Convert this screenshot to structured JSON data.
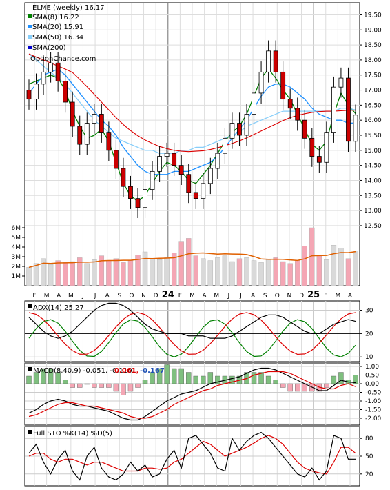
{
  "price_panel": {
    "title": "ELME (weekly) 16.17",
    "legend": [
      {
        "label": "SMA(8) 16.22",
        "color": "#008000"
      },
      {
        "label": "SMA(20) 15.91",
        "color": "#1e90ff"
      },
      {
        "label": "SMA(50) 16.34",
        "color": "#87cefa"
      },
      {
        "label": "SMA(200)",
        "color": "#0000cd"
      }
    ],
    "watermark": "OptionChance.com",
    "y_ticks": [
      "19.50",
      "19.00",
      "18.50",
      "18.00",
      "17.50",
      "17.00",
      "16.50",
      "16.00",
      "15.50",
      "15.00",
      "14.50",
      "14.00",
      "13.50",
      "13.00",
      "12.50"
    ],
    "volume_ticks": [
      "6M",
      "5M",
      "4M",
      "3M",
      "2M",
      "1M"
    ]
  },
  "x_axis": {
    "labels": [
      "F",
      "M",
      "A",
      "M",
      "J",
      "J",
      "A",
      "S",
      "O",
      "N",
      "D",
      "24",
      "F",
      "M",
      "A",
      "M",
      "J",
      "J",
      "A",
      "S",
      "O",
      "N",
      "D",
      "25",
      "F",
      "M",
      "A"
    ]
  },
  "adx_panel": {
    "title": "ADX(14) 25.27",
    "y_ticks": [
      "30",
      "20",
      "10"
    ]
  },
  "macd_panel": {
    "title": "MACD(8,40,9) -0.051, -0.110,",
    "value_red": "0.061,",
    "value_blue": "-0.167",
    "y_ticks": [
      "1.00",
      "0.50",
      "0.00",
      "-0.50",
      "-1.00",
      "-1.50",
      "-2.00"
    ]
  },
  "sto_panel": {
    "title": "Full STO %K(14) %D(5)",
    "y_ticks": [
      "80",
      "50",
      "20"
    ]
  },
  "colors": {
    "up_candle": "#ffffff",
    "down_candle": "#cc0000",
    "sma8": "#008000",
    "sma20": "#1e90ff",
    "sma50": "#87cefa",
    "sma200": "#dd0000",
    "vol_down": "#f4a6b4",
    "vol_up": "#d9d9d9",
    "vol_avg": "#e06000"
  },
  "chart_data": [
    {
      "type": "candlestick",
      "title": "ELME (weekly) 16.17",
      "ylim": [
        12.2,
        19.9
      ],
      "series": [
        {
          "name": "SMA(8) 16.22",
          "values": [
            17.2,
            17.3,
            17.4,
            17.5,
            17.4,
            17.0,
            16.3,
            15.8,
            15.4,
            15.5,
            15.7,
            15.3,
            14.6,
            13.9,
            13.5,
            13.3,
            13.5,
            13.9,
            14.3,
            14.6,
            14.5,
            14.3,
            14.0,
            13.9,
            14.2,
            14.5,
            14.9,
            15.3,
            15.6,
            15.8,
            16.2,
            16.8,
            17.4,
            17.7,
            17.4,
            17.0,
            16.7,
            16.2,
            15.7,
            15.2,
            15.0,
            15.3,
            16.2,
            16.9,
            16.5,
            16.22
          ]
        },
        {
          "name": "SMA(20) 15.91",
          "values": [
            16.9,
            17.2,
            17.5,
            17.6,
            17.7,
            17.5,
            17.2,
            16.9,
            16.6,
            16.3,
            16.0,
            15.8,
            15.5,
            15.1,
            14.8,
            14.5,
            14.3,
            14.2,
            14.2,
            14.2,
            14.3,
            14.3,
            14.3,
            14.4,
            14.5,
            14.6,
            14.8,
            15.1,
            15.4,
            15.7,
            16.0,
            16.4,
            16.8,
            17.1,
            17.2,
            17.2,
            17.1,
            16.9,
            16.7,
            16.4,
            16.2,
            16.1,
            16.0,
            16.0,
            15.9,
            15.91
          ]
        },
        {
          "name": "SMA(50) 16.34",
          "values": [
            18.2,
            18.0,
            17.8,
            17.6,
            17.4,
            17.2,
            16.9,
            16.6,
            16.3,
            16.0,
            15.8,
            15.6,
            15.4,
            15.3,
            15.2,
            15.1,
            15.0,
            15.0,
            14.9,
            14.9,
            14.9,
            15.0,
            15.0,
            15.1,
            15.1,
            15.2,
            15.3,
            15.4,
            15.5,
            15.6,
            15.8,
            15.9,
            16.0,
            16.1,
            16.2,
            16.3,
            16.3,
            16.3,
            16.3,
            16.3,
            16.3,
            16.3,
            16.3,
            16.4,
            16.4,
            16.34
          ]
        }
      ],
      "ohlc_close": [
        16.7,
        17.2,
        17.6,
        17.9,
        17.3,
        16.6,
        15.8,
        15.2,
        15.9,
        16.2,
        15.6,
        15.0,
        14.4,
        13.8,
        13.4,
        13.1,
        13.7,
        14.3,
        14.8,
        14.9,
        14.5,
        14.2,
        13.6,
        13.4,
        13.9,
        14.4,
        14.9,
        15.4,
        15.9,
        15.5,
        16.2,
        16.9,
        17.6,
        18.3,
        17.6,
        16.7,
        16.4,
        16.0,
        15.4,
        14.8,
        14.6,
        15.6,
        17.1,
        17.4,
        15.3,
        16.17
      ],
      "volume_millions": [
        1.9,
        2.3,
        2.8,
        2.2,
        2.6,
        2.4,
        2.5,
        2.9,
        2.3,
        2.7,
        3.1,
        2.6,
        2.8,
        2.4,
        2.6,
        3.2,
        3.5,
        2.8,
        2.7,
        2.9,
        3.4,
        4.6,
        4.9,
        3.1,
        2.8,
        2.6,
        2.9,
        3.1,
        2.5,
        2.8,
        2.9,
        2.6,
        2.4,
        2.7,
        2.9,
        2.5,
        2.3,
        2.6,
        4.1,
        6.0,
        3.1,
        2.7,
        4.2,
        3.9,
        2.8,
        3.6
      ]
    },
    {
      "type": "line",
      "title": "ADX(14) 25.27",
      "ylim": [
        8,
        34
      ],
      "series": [
        {
          "name": "ADX(14) 25.27",
          "values": [
            27,
            24,
            21,
            19,
            18,
            19,
            21,
            24,
            27,
            30,
            32,
            33,
            33,
            32,
            30,
            27,
            24,
            22,
            21,
            20,
            20,
            20,
            19,
            19,
            19,
            18,
            18,
            18,
            19,
            21,
            23,
            25,
            27,
            28,
            28,
            27,
            25,
            23,
            21,
            20,
            20,
            22,
            24,
            25,
            26,
            25.27
          ]
        }
      ]
    },
    {
      "type": "line",
      "title": "MACD(8,40,9) -0.051, -0.110,",
      "ylim": [
        -2.4,
        1.2
      ],
      "series": [
        {
          "name": "0.061,",
          "values": [
            -1.7,
            -1.5,
            -1.2,
            -1.0,
            -0.9,
            -1.0,
            -1.2,
            -1.3,
            -1.3,
            -1.4,
            -1.5,
            -1.6,
            -1.8,
            -2.0,
            -2.1,
            -2.1,
            -1.9,
            -1.6,
            -1.3,
            -1.0,
            -0.8,
            -0.6,
            -0.5,
            -0.4,
            -0.2,
            0.0,
            0.1,
            0.2,
            0.3,
            0.4,
            0.6,
            0.8,
            0.9,
            0.9,
            0.8,
            0.6,
            0.4,
            0.2,
            0.0,
            -0.2,
            -0.4,
            -0.4,
            -0.1,
            0.2,
            0.1,
            0.061
          ]
        },
        {
          "name": "-0.167",
          "values": [
            -1.9,
            -1.8,
            -1.6,
            -1.4,
            -1.2,
            -1.1,
            -1.1,
            -1.2,
            -1.3,
            -1.3,
            -1.4,
            -1.5,
            -1.6,
            -1.7,
            -1.9,
            -2.0,
            -2.0,
            -1.9,
            -1.7,
            -1.5,
            -1.2,
            -1.0,
            -0.8,
            -0.6,
            -0.4,
            -0.3,
            -0.1,
            0.0,
            0.1,
            0.2,
            0.3,
            0.5,
            0.6,
            0.7,
            0.7,
            0.7,
            0.6,
            0.4,
            0.2,
            0.0,
            -0.2,
            -0.3,
            -0.3,
            -0.1,
            0.0,
            -0.167
          ]
        }
      ]
    },
    {
      "type": "line",
      "title": "Full STO %K(14) %D(5)",
      "ylim": [
        0,
        100
      ],
      "series": [
        {
          "name": "%K(14)",
          "values": [
            55,
            70,
            40,
            20,
            45,
            60,
            25,
            10,
            50,
            65,
            30,
            15,
            10,
            20,
            40,
            25,
            35,
            15,
            20,
            45,
            60,
            30,
            80,
            85,
            70,
            55,
            30,
            25,
            80,
            60,
            75,
            85,
            90,
            80,
            65,
            50,
            35,
            20,
            15,
            30,
            10,
            25,
            85,
            80,
            45,
            45
          ]
        },
        {
          "name": "%D(5)",
          "values": [
            50,
            55,
            55,
            45,
            40,
            45,
            45,
            40,
            35,
            40,
            40,
            35,
            30,
            25,
            25,
            25,
            30,
            30,
            28,
            30,
            40,
            45,
            55,
            65,
            75,
            70,
            60,
            50,
            55,
            60,
            65,
            72,
            80,
            85,
            80,
            70,
            55,
            40,
            30,
            25,
            22,
            20,
            40,
            65,
            65,
            55
          ]
        }
      ]
    }
  ]
}
